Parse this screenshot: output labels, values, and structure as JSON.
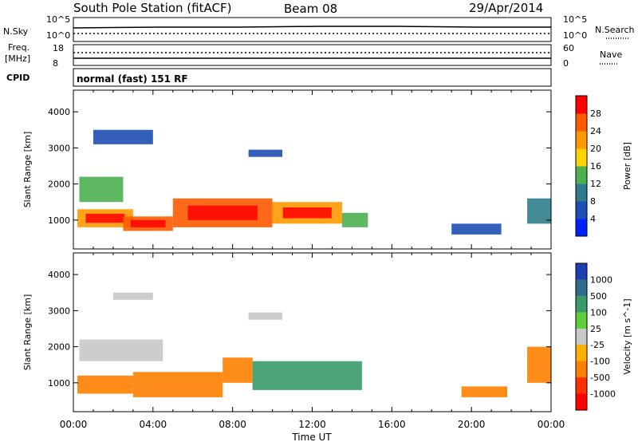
{
  "header": {
    "title": "South Pole Station (fitACF)",
    "beam": "Beam 08",
    "date": "29/Apr/2014"
  },
  "top_panels": {
    "nsky_label": "N.Sky",
    "nsky_ticks": [
      "10^5",
      "10^0"
    ],
    "nsearch_label": "N.Search",
    "nsearch_ticks": [
      "10^5",
      "10^0"
    ],
    "freq_label_1": "Freq.",
    "freq_label_2": "[MHz]",
    "freq_ticks": [
      "18",
      "8"
    ],
    "nave_label": "Nave",
    "nave_ticks": [
      "60",
      "0"
    ],
    "cpid_label": "CPID",
    "cpid_value": "normal (fast) 151 RF"
  },
  "chart_data": [
    {
      "type": "heatmap",
      "name": "power",
      "xlabel": "Time UT",
      "ylabel": "Slant Range [km]",
      "x_ticks": [
        "00:00",
        "04:00",
        "08:00",
        "12:00",
        "16:00",
        "20:00",
        "00:00"
      ],
      "xlim": [
        0,
        24
      ],
      "ylim": [
        200,
        4600
      ],
      "y_ticks": [
        1000,
        2000,
        3000,
        4000
      ],
      "colorbar": {
        "label": "Power [dB]",
        "ticks": [
          "4",
          "8",
          "12",
          "16",
          "20",
          "24",
          "28"
        ],
        "colors": [
          "#0022ff",
          "#1e4fb4",
          "#2f7d8c",
          "#4caf50",
          "#ffd400",
          "#ff9900",
          "#ff5a00",
          "#ff0000"
        ]
      },
      "regions": [
        {
          "t0": 0.3,
          "t1": 2.5,
          "r0": 1500,
          "r1": 2200,
          "level": 3
        },
        {
          "t0": 0.2,
          "t1": 3.0,
          "r0": 800,
          "r1": 1300,
          "level": 5
        },
        {
          "t0": 2.5,
          "t1": 5.0,
          "r0": 700,
          "r1": 1100,
          "level": 6
        },
        {
          "t0": 5.0,
          "t1": 10.0,
          "r0": 800,
          "r1": 1600,
          "level": 6
        },
        {
          "t0": 10.0,
          "t1": 13.5,
          "r0": 900,
          "r1": 1500,
          "level": 5
        },
        {
          "t0": 13.5,
          "t1": 14.8,
          "r0": 800,
          "r1": 1200,
          "level": 3
        },
        {
          "t0": 1.0,
          "t1": 4.0,
          "r0": 3100,
          "r1": 3500,
          "level": 1
        },
        {
          "t0": 8.8,
          "t1": 10.5,
          "r0": 2750,
          "r1": 2950,
          "level": 1
        },
        {
          "t0": 19.0,
          "t1": 21.5,
          "r0": 600,
          "r1": 900,
          "level": 1
        },
        {
          "t0": 22.8,
          "t1": 24.0,
          "r0": 900,
          "r1": 1600,
          "level": 2
        }
      ]
    },
    {
      "type": "heatmap",
      "name": "velocity",
      "xlabel": "Time UT",
      "ylabel": "Slant Range [km]",
      "x_ticks": [
        "00:00",
        "04:00",
        "08:00",
        "12:00",
        "16:00",
        "20:00",
        "00:00"
      ],
      "xlim": [
        0,
        24
      ],
      "ylim": [
        200,
        4600
      ],
      "y_ticks": [
        1000,
        2000,
        3000,
        4000
      ],
      "colorbar": {
        "label": "Velocity [m s^-1]",
        "ticks": [
          "1000",
          "500",
          "100",
          "25",
          "-25",
          "-100",
          "-500",
          "-1000"
        ],
        "colors": [
          "#1e3fb4",
          "#2f6d8c",
          "#3a9a6a",
          "#5ccf3a",
          "#c8c8c8",
          "#ffb000",
          "#ff7f00",
          "#ff3000",
          "#ff0000"
        ]
      },
      "regions": [
        {
          "t0": 0.3,
          "t1": 4.5,
          "r0": 1600,
          "r1": 2200,
          "value": 0
        },
        {
          "t0": 0.2,
          "t1": 3.0,
          "r0": 700,
          "r1": 1200,
          "value": -300
        },
        {
          "t0": 3.0,
          "t1": 7.5,
          "r0": 600,
          "r1": 1300,
          "value": -400
        },
        {
          "t0": 7.5,
          "t1": 9.0,
          "r0": 1000,
          "r1": 1700,
          "value": -300
        },
        {
          "t0": 9.0,
          "t1": 14.5,
          "r0": 800,
          "r1": 1600,
          "value": 200
        },
        {
          "t0": 2.0,
          "t1": 4.0,
          "r0": 3300,
          "r1": 3500,
          "value": 0
        },
        {
          "t0": 8.8,
          "t1": 10.5,
          "r0": 2750,
          "r1": 2950,
          "value": 0
        },
        {
          "t0": 19.5,
          "t1": 21.8,
          "r0": 600,
          "r1": 900,
          "value": -400
        },
        {
          "t0": 22.8,
          "t1": 24.0,
          "r0": 1000,
          "r1": 2000,
          "value": -300
        }
      ]
    }
  ]
}
